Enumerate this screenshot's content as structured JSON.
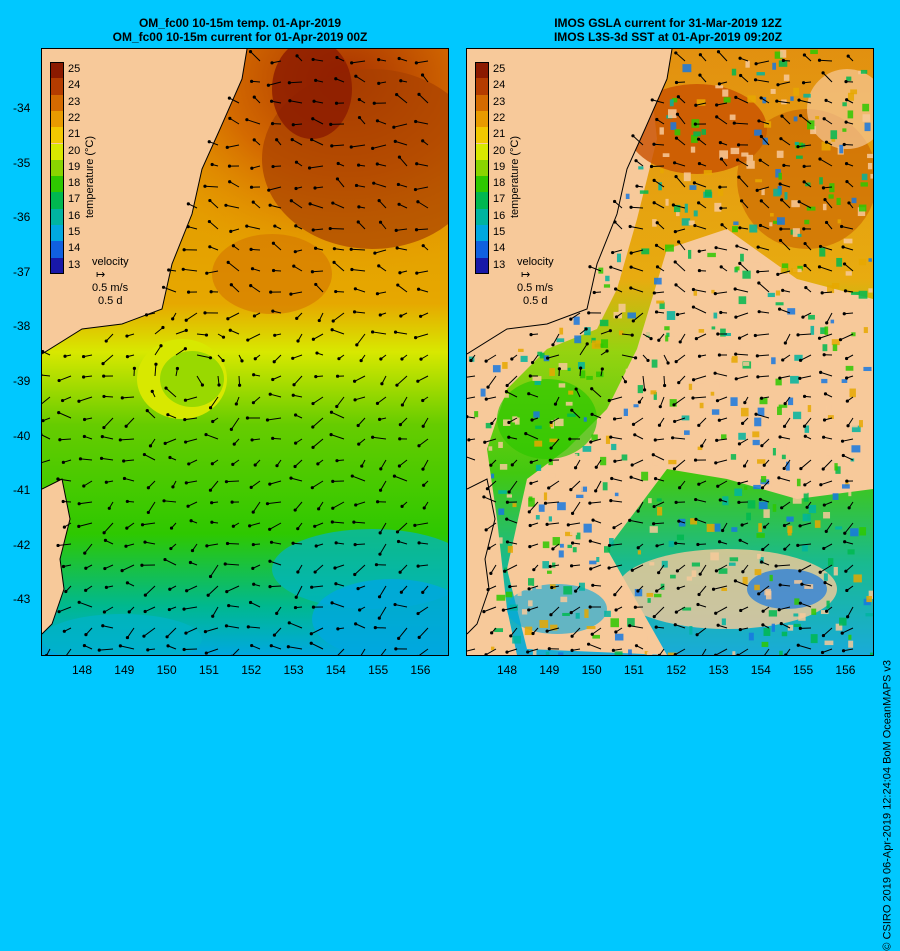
{
  "left_panel": {
    "title_line1": "OM_fc00 10-15m temp. 01-Apr-2019",
    "title_line2": "OM_fc00 10-15m current for 01-Apr-2019 00Z"
  },
  "right_panel": {
    "title_line1": "IMOS GSLA current for 31-Mar-2019 12Z",
    "title_line2": "IMOS L3S-3d SST at 01-Apr-2019 09:20Z"
  },
  "latitude_labels": [
    "-34",
    "-35",
    "-36",
    "-37",
    "-38",
    "-39",
    "-40",
    "-41",
    "-42",
    "-43"
  ],
  "longitude_labels": [
    "148",
    "149",
    "150",
    "151",
    "152",
    "153",
    "154",
    "155",
    "156"
  ],
  "colorbar": {
    "title": "temperature (°C)",
    "ticks": [
      "25",
      "24",
      "23",
      "22",
      "21",
      "20",
      "19",
      "18",
      "17",
      "16",
      "15",
      "14",
      "13"
    ],
    "colors": [
      "#8b1a00",
      "#b43c00",
      "#d46a00",
      "#e89a00",
      "#f2c800",
      "#d8e800",
      "#8ad400",
      "#2ec800",
      "#00b850",
      "#00b4a0",
      "#00a8e0",
      "#1060e0",
      "#1818a8"
    ]
  },
  "velocity_key": {
    "label": "velocity",
    "speed": "0.5 m/s",
    "time": "0.5 d"
  },
  "credit": "© CSIRO 2019   06-Apr-2019 12:24:04 BoM OceanMAPS v3"
}
